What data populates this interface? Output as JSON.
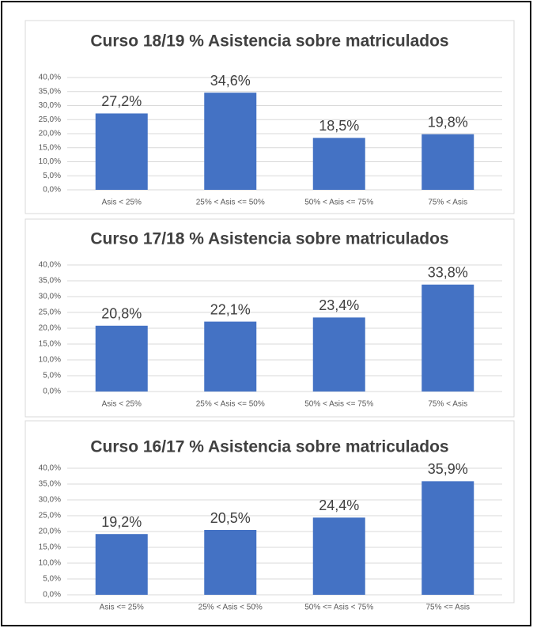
{
  "chart_data": [
    {
      "type": "bar",
      "title": "Curso 18/19 % Asistencia sobre matriculados",
      "categories": [
        "Asis < 25%",
        "25% < Asis <= 50%",
        "50% < Asis <= 75%",
        "75% < Asis"
      ],
      "values": [
        27.2,
        34.6,
        18.5,
        19.8
      ],
      "value_labels": [
        "27,2%",
        "34,6%",
        "18,5%",
        "19,8%"
      ],
      "color": "#4472c4",
      "ylim": [
        0,
        40
      ],
      "yticks": [
        {
          "value": 0,
          "label": "0,0%"
        },
        {
          "value": 5,
          "label": "5,0%"
        },
        {
          "value": 10,
          "label": "10,0%"
        },
        {
          "value": 15,
          "label": "15,0%"
        },
        {
          "value": 20,
          "label": "20,0%"
        },
        {
          "value": 25,
          "label": "25,0%"
        },
        {
          "value": 30,
          "label": "30,0%"
        },
        {
          "value": 35,
          "label": "35,0%"
        },
        {
          "value": 40,
          "label": "40,0%"
        }
      ],
      "grid": true
    },
    {
      "type": "bar",
      "title": "Curso 17/18 % Asistencia sobre matriculados",
      "categories": [
        "Asis < 25%",
        "25% < Asis <= 50%",
        "50% < Asis <= 75%",
        "75% < Asis"
      ],
      "values": [
        20.8,
        22.1,
        23.4,
        33.8
      ],
      "value_labels": [
        "20,8%",
        "22,1%",
        "23,4%",
        "33,8%"
      ],
      "color": "#4472c4",
      "ylim": [
        0,
        40
      ],
      "yticks": [
        {
          "value": 0,
          "label": "0,0%"
        },
        {
          "value": 5,
          "label": "5,0%"
        },
        {
          "value": 10,
          "label": "10,0%"
        },
        {
          "value": 15,
          "label": "15,0%"
        },
        {
          "value": 20,
          "label": "20,0%"
        },
        {
          "value": 25,
          "label": "25,0%"
        },
        {
          "value": 30,
          "label": "30,0%"
        },
        {
          "value": 35,
          "label": "35,0%"
        },
        {
          "value": 40,
          "label": "40,0%"
        }
      ],
      "grid": true
    },
    {
      "type": "bar",
      "title": "Curso 16/17 % Asistencia sobre matriculados",
      "categories": [
        "Asis <= 25%",
        "25% < Asis < 50%",
        "50% <= Asis < 75%",
        "75% <= Asis"
      ],
      "values": [
        19.2,
        20.5,
        24.4,
        35.9
      ],
      "value_labels": [
        "19,2%",
        "20,5%",
        "24,4%",
        "35,9%"
      ],
      "color": "#4472c4",
      "ylim": [
        0,
        40
      ],
      "yticks": [
        {
          "value": 0,
          "label": "0,0%"
        },
        {
          "value": 5,
          "label": "5,0%"
        },
        {
          "value": 10,
          "label": "10,0%"
        },
        {
          "value": 15,
          "label": "15,0%"
        },
        {
          "value": 20,
          "label": "20,0%"
        },
        {
          "value": 25,
          "label": "25,0%"
        },
        {
          "value": 30,
          "label": "30,0%"
        },
        {
          "value": 35,
          "label": "35,0%"
        },
        {
          "value": 40,
          "label": "40,0%"
        }
      ],
      "grid": true
    }
  ]
}
